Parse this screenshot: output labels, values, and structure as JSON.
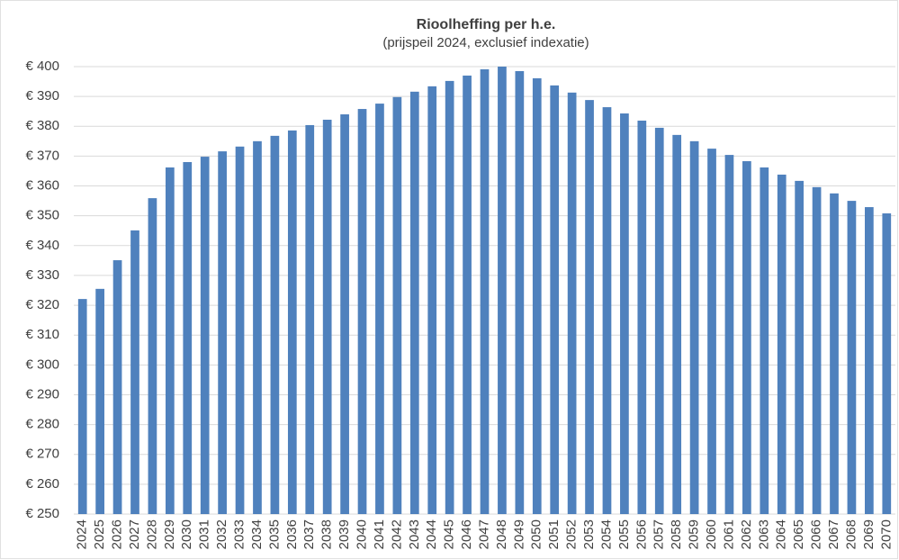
{
  "chart_data": {
    "type": "bar",
    "title": "Rioolheffing per h.e.",
    "subtitle": "(prijspeil 2024, exclusief indexatie)",
    "categories": [
      "2024",
      "2025",
      "2026",
      "2027",
      "2028",
      "2029",
      "2030",
      "2031",
      "2032",
      "2033",
      "2034",
      "2035",
      "2036",
      "2037",
      "2038",
      "2039",
      "2040",
      "2041",
      "2042",
      "2043",
      "2044",
      "2045",
      "2046",
      "2047",
      "2048",
      "2049",
      "2050",
      "2051",
      "2052",
      "2053",
      "2054",
      "2055",
      "2056",
      "2057",
      "2058",
      "2059",
      "2060",
      "2061",
      "2062",
      "2063",
      "2064",
      "2065",
      "2066",
      "2067",
      "2068",
      "2069",
      "2070"
    ],
    "values": [
      322.1,
      325.5,
      335.1,
      345.1,
      355.9,
      366.2,
      368,
      369.8,
      371.6,
      373.2,
      375,
      376.8,
      378.6,
      380.4,
      382.2,
      384,
      385.8,
      387.6,
      389.8,
      391.6,
      393.4,
      395.2,
      397,
      399.1,
      400,
      398.5,
      396.1,
      393.7,
      391.3,
      388.8,
      386.4,
      384.3,
      381.9,
      379.5,
      377.1,
      375,
      372.5,
      370.4,
      368.3,
      366.2,
      363.8,
      361.7,
      359.6,
      357.5,
      355,
      352.9,
      350.8
    ],
    "color": "#4f81bd",
    "ylim": [
      250,
      400
    ],
    "yticks": [
      {
        "value": 250,
        "label": "€ 250"
      },
      {
        "value": 260,
        "label": "€ 260"
      },
      {
        "value": 270,
        "label": "€ 270"
      },
      {
        "value": 280,
        "label": "€ 280"
      },
      {
        "value": 290,
        "label": "€ 290"
      },
      {
        "value": 300,
        "label": "€ 300"
      },
      {
        "value": 310,
        "label": "€ 310"
      },
      {
        "value": 320,
        "label": "€ 320"
      },
      {
        "value": 330,
        "label": "€ 330"
      },
      {
        "value": 340,
        "label": "€ 340"
      },
      {
        "value": 350,
        "label": "€ 350"
      },
      {
        "value": 360,
        "label": "€ 360"
      },
      {
        "value": 370,
        "label": "€ 370"
      },
      {
        "value": 380,
        "label": "€ 380"
      },
      {
        "value": 390,
        "label": "€ 390"
      },
      {
        "value": 400,
        "label": "€ 400"
      }
    ],
    "grid": true
  }
}
